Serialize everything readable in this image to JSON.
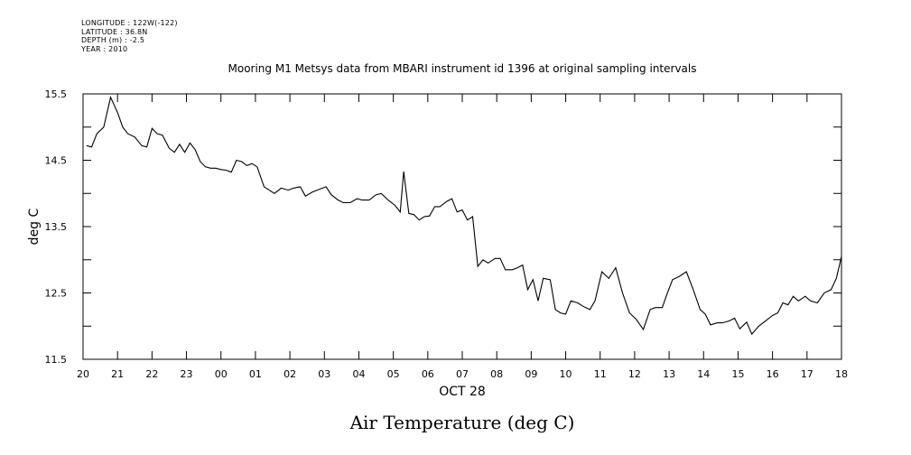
{
  "metadata": {
    "longitude": "LONGITUDE : 122W(-122)",
    "latitude": "LATITUDE : 36.8N",
    "depth": "DEPTH (m) : -2.5",
    "year": "YEAR : 2010"
  },
  "chart_data": {
    "type": "line",
    "title": "Mooring M1 Metsys data from MBARI instrument id 1396 at original sampling intervals",
    "xlabel": "OCT 28",
    "ylabel": "deg C",
    "caption": "Air Temperature (deg C)",
    "xlim": [
      20,
      42
    ],
    "ylim": [
      11.5,
      15.5
    ],
    "x_ticks": [
      {
        "v": 20,
        "label": "20"
      },
      {
        "v": 21,
        "label": "21"
      },
      {
        "v": 22,
        "label": "22"
      },
      {
        "v": 23,
        "label": "23"
      },
      {
        "v": 24,
        "label": "00"
      },
      {
        "v": 25,
        "label": "01"
      },
      {
        "v": 26,
        "label": "02"
      },
      {
        "v": 27,
        "label": "03"
      },
      {
        "v": 28,
        "label": "04"
      },
      {
        "v": 29,
        "label": "05"
      },
      {
        "v": 30,
        "label": "06"
      },
      {
        "v": 31,
        "label": "07"
      },
      {
        "v": 32,
        "label": "08"
      },
      {
        "v": 33,
        "label": "09"
      },
      {
        "v": 34,
        "label": "10"
      },
      {
        "v": 35,
        "label": "11"
      },
      {
        "v": 36,
        "label": "12"
      },
      {
        "v": 37,
        "label": "13"
      },
      {
        "v": 38,
        "label": "14"
      },
      {
        "v": 39,
        "label": "15"
      },
      {
        "v": 40,
        "label": "16"
      },
      {
        "v": 41,
        "label": "17"
      },
      {
        "v": 42,
        "label": "18"
      }
    ],
    "y_ticks": [
      {
        "v": 11.5,
        "label": "11.5"
      },
      {
        "v": 12.5,
        "label": "12.5"
      },
      {
        "v": 13.5,
        "label": "13.5"
      },
      {
        "v": 14.5,
        "label": "14.5"
      },
      {
        "v": 15.5,
        "label": "15.5"
      }
    ],
    "y_minor_ticks": [
      12.0,
      13.0,
      14.0,
      15.0
    ],
    "grid": false,
    "series": [
      {
        "x": [
          20.1,
          20.25,
          20.4,
          20.6,
          20.8,
          21.0,
          21.15,
          21.3,
          21.5,
          21.7,
          21.85,
          22.0,
          22.15,
          22.3,
          22.5,
          22.65,
          22.8,
          22.95,
          23.1,
          23.25,
          23.4,
          23.55,
          23.7,
          23.85,
          24.0,
          24.15,
          24.3,
          24.45,
          24.6,
          24.75,
          24.9,
          25.05,
          25.25,
          25.4,
          25.55,
          25.75,
          25.95,
          26.1,
          26.3,
          26.45,
          26.65,
          26.85,
          27.05,
          27.2,
          27.4,
          27.55,
          27.75,
          27.95,
          28.1,
          28.3,
          28.5,
          28.65,
          28.85,
          29.05,
          29.2,
          29.3,
          29.45,
          29.6,
          29.75,
          29.9,
          30.05,
          30.2,
          30.35,
          30.55,
          30.7,
          30.85,
          31.0,
          31.15,
          31.3,
          31.45,
          31.6,
          31.75,
          31.95,
          32.1,
          32.25,
          32.45,
          32.6,
          32.75,
          32.9,
          33.05,
          33.2,
          33.35,
          33.55,
          33.7,
          33.85,
          34.0,
          34.15,
          34.35,
          34.5,
          34.7,
          34.85,
          35.05,
          35.25,
          35.45,
          35.65,
          35.85,
          36.05,
          36.25,
          36.45,
          36.6,
          36.8,
          36.95,
          37.1,
          37.3,
          37.5,
          37.7,
          37.9,
          38.05,
          38.2,
          38.4,
          38.55,
          38.75,
          38.9,
          39.05,
          39.25,
          39.4,
          39.6,
          39.8,
          40.0,
          40.15,
          40.3,
          40.45,
          40.6,
          40.75,
          40.95,
          41.1,
          41.3,
          41.5,
          41.7,
          41.85,
          42.0
        ],
        "y": [
          14.72,
          14.7,
          14.9,
          15.0,
          15.45,
          15.22,
          15.0,
          14.9,
          14.85,
          14.72,
          14.7,
          14.98,
          14.9,
          14.88,
          14.68,
          14.62,
          14.74,
          14.62,
          14.76,
          14.66,
          14.48,
          14.4,
          14.38,
          14.38,
          14.36,
          14.35,
          14.32,
          14.5,
          14.48,
          14.42,
          14.45,
          14.4,
          14.1,
          14.05,
          14.0,
          14.08,
          14.05,
          14.08,
          14.1,
          13.96,
          14.02,
          14.06,
          14.1,
          13.98,
          13.9,
          13.86,
          13.86,
          13.92,
          13.9,
          13.9,
          13.98,
          14.0,
          13.9,
          13.82,
          13.72,
          14.33,
          13.7,
          13.68,
          13.6,
          13.65,
          13.66,
          13.8,
          13.8,
          13.88,
          13.92,
          13.72,
          13.75,
          13.6,
          13.65,
          12.9,
          13.0,
          12.95,
          13.02,
          13.02,
          12.85,
          12.85,
          12.88,
          12.92,
          12.55,
          12.7,
          12.38,
          12.72,
          12.7,
          12.25,
          12.2,
          12.18,
          12.38,
          12.35,
          12.3,
          12.25,
          12.38,
          12.82,
          12.72,
          12.88,
          12.5,
          12.2,
          12.1,
          11.95,
          12.25,
          12.28,
          12.28,
          12.5,
          12.7,
          12.75,
          12.82,
          12.55,
          12.25,
          12.18,
          12.02,
          12.05,
          12.05,
          12.08,
          12.12,
          11.96,
          12.06,
          11.88,
          12.0,
          12.08,
          12.16,
          12.2,
          12.35,
          12.32,
          12.45,
          12.38,
          12.45,
          12.38,
          12.35,
          12.5,
          12.55,
          12.72,
          13.05
        ]
      }
    ]
  }
}
